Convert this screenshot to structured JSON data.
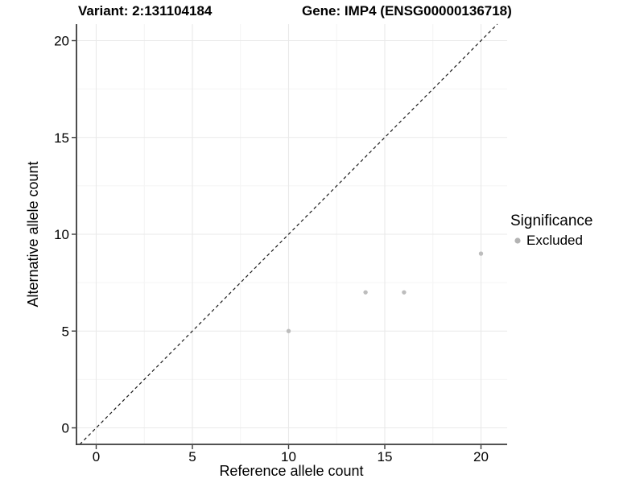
{
  "figure": {
    "title_left": "Variant: 2:131104184",
    "title_right": "Gene: IMP4 (ENSG00000136718)"
  },
  "chart_data": {
    "type": "scatter",
    "title": "Variant: 2:131104184 / Gene: IMP4 (ENSG00000136718)",
    "xlabel": "Reference allele count",
    "ylabel": "Alternative allele count",
    "xlim": [
      -1,
      21.4
    ],
    "ylim": [
      -0.85,
      20.85
    ],
    "xticks": [
      0,
      5,
      10,
      15,
      20
    ],
    "yticks": [
      0,
      5,
      10,
      15,
      20
    ],
    "x_minor": [
      2.5,
      7.5,
      12.5,
      17.5
    ],
    "y_minor": [
      2.5,
      7.5,
      12.5,
      17.5
    ],
    "grid": "major and minor gridlines on",
    "legend_position": "right",
    "reference_line": {
      "type": "identity y=x",
      "style": "dashed",
      "color": "#1a1a1a"
    },
    "series": [
      {
        "name": "Excluded",
        "marker": "circle",
        "color": "#bdbdbd",
        "points": [
          [
            10,
            5
          ],
          [
            14,
            7
          ],
          [
            16,
            7
          ],
          [
            20,
            9
          ]
        ]
      }
    ]
  },
  "legend": {
    "title": "Significance",
    "items": [
      {
        "label": "Excluded",
        "color": "#b3b3b3"
      }
    ]
  },
  "colors": {
    "background": "#ffffff",
    "grid_major": "#e9e9e9",
    "grid_minor": "#f4f4f4",
    "axis": "#3a3a3a",
    "text": "#000000"
  }
}
